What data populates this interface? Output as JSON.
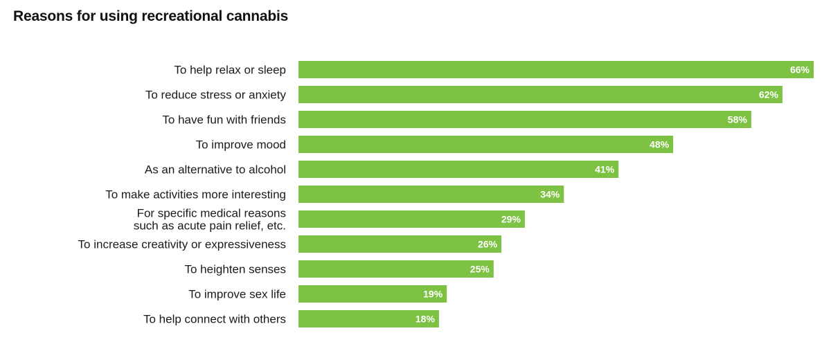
{
  "colors": {
    "bar": "#7dc242",
    "value_text": "#ffffff",
    "label_text": "#1a1a1a"
  },
  "chart_data": {
    "type": "bar",
    "orientation": "horizontal",
    "title": "Reasons for using recreational cannabis",
    "unit": "%",
    "xlim": [
      0,
      66
    ],
    "grid": false,
    "categories": [
      "To help relax or sleep",
      "To reduce stress or anxiety",
      "To have fun with friends",
      "To improve mood",
      "As an alternative to alcohol",
      "To make activities more interesting",
      "For specific medical reasons\nsuch as acute pain relief, etc.",
      "To increase creativity or expressiveness",
      "To heighten senses",
      "To improve sex life",
      "To help connect with others"
    ],
    "values": [
      66,
      62,
      58,
      48,
      41,
      34,
      29,
      26,
      25,
      19,
      18
    ],
    "value_labels": [
      "66%",
      "62%",
      "58%",
      "48%",
      "41%",
      "34%",
      "29%",
      "26%",
      "25%",
      "19%",
      "18%"
    ]
  }
}
